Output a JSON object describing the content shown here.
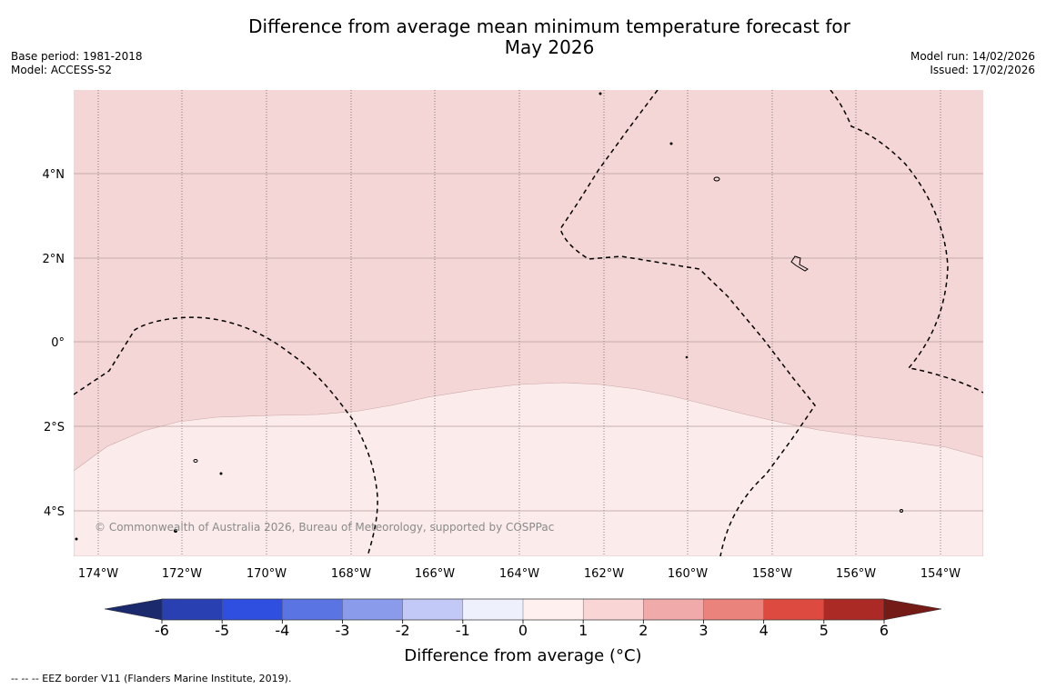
{
  "title_line1": "Difference from average mean minimum temperature forecast for",
  "title_line2": "May 2026",
  "base_period": "Base period: 1981-2018",
  "model": "Model: ACCESS-S2",
  "model_run": "Model run: 14/02/2026",
  "issued": "Issued: 17/02/2026",
  "copyright": "© Commonwealth of Australia 2026, Bureau of Meteorology, supported by COSPPac",
  "lon_labels": [
    "174°W",
    "172°W",
    "170°W",
    "168°W",
    "166°W",
    "164°W",
    "162°W",
    "160°W",
    "158°W",
    "156°W",
    "154°W"
  ],
  "lat_labels": [
    "4°N",
    "2°N",
    "0°",
    "2°S",
    "4°S"
  ],
  "colorbar": {
    "title": "Difference from average (°C)",
    "ticks": [
      "-6",
      "-5",
      "-4",
      "-3",
      "-2",
      "-1",
      "0",
      "1",
      "2",
      "3",
      "4",
      "5",
      "6"
    ],
    "colors": {
      "under": "#1a2a6c",
      "bins": [
        "#2840b2",
        "#2f4fe0",
        "#5a74e4",
        "#8a9bec",
        "#c3c9f6",
        "#eef0fc",
        "#fdf0ee",
        "#f9d5d5",
        "#f0aaaa",
        "#e9837c",
        "#dd4a40",
        "#ab2a25"
      ],
      "over": "#751b17"
    }
  },
  "legend": "--  --  -- EEZ border V11 (Flanders Marine Institute, 2019).",
  "map_colors": {
    "anomaly_1_to_2": "#f5d6d6",
    "anomaly_0_to_1": "#fbeceb"
  }
}
